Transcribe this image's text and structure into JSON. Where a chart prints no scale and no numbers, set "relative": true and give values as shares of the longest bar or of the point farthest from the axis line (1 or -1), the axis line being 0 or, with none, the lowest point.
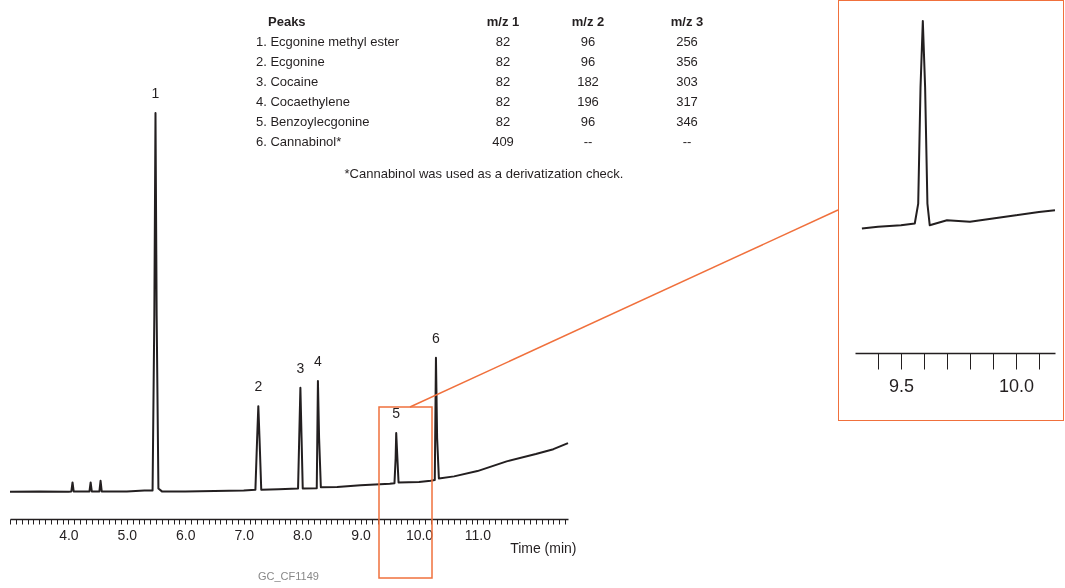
{
  "chart_data": [
    {
      "type": "line",
      "relative": true,
      "xlabel": "Time (min)",
      "color": "#231f20",
      "x": [
        3.0,
        3.5,
        4.0,
        4.05,
        4.07,
        4.09,
        4.36,
        4.38,
        4.4,
        4.53,
        4.55,
        4.57,
        5.0,
        5.3,
        5.44,
        5.47,
        5.49,
        5.51,
        5.54,
        5.6,
        6.0,
        6.5,
        7.0,
        7.2,
        7.23,
        7.25,
        7.27,
        7.3,
        7.6,
        7.93,
        7.95,
        7.97,
        7.99,
        8.01,
        8.25,
        8.27,
        8.29,
        8.32,
        8.6,
        9.0,
        9.5,
        9.58,
        9.6,
        9.61,
        9.63,
        9.65,
        10.0,
        10.2,
        10.27,
        10.29,
        10.31,
        10.34,
        10.6,
        11.0,
        11.5,
        12.0,
        12.3,
        12.55
      ],
      "values": [
        0.067,
        0.068,
        0.067,
        0.068,
        0.09,
        0.068,
        0.068,
        0.09,
        0.068,
        0.068,
        0.094,
        0.068,
        0.068,
        0.07,
        0.07,
        0.5,
        1.0,
        0.5,
        0.075,
        0.068,
        0.068,
        0.069,
        0.07,
        0.072,
        0.2,
        0.278,
        0.2,
        0.072,
        0.073,
        0.075,
        0.2,
        0.323,
        0.2,
        0.075,
        0.076,
        0.34,
        0.2,
        0.078,
        0.079,
        0.083,
        0.087,
        0.088,
        0.15,
        0.212,
        0.15,
        0.09,
        0.091,
        0.094,
        0.096,
        0.397,
        0.2,
        0.1,
        0.105,
        0.118,
        0.142,
        0.16,
        0.172,
        0.187
      ],
      "xlim": [
        3.0,
        12.55
      ],
      "xticks": [
        {
          "value": 3.0,
          "label": null
        },
        {
          "value": 3.1,
          "label": null
        },
        {
          "value": 3.2,
          "label": null
        },
        {
          "value": 3.3,
          "label": null
        },
        {
          "value": 3.4,
          "label": null
        },
        {
          "value": 3.5,
          "label": null
        },
        {
          "value": 3.6,
          "label": null
        },
        {
          "value": 3.7,
          "label": null
        },
        {
          "value": 3.8,
          "label": null
        },
        {
          "value": 3.9,
          "label": null
        },
        {
          "value": 4,
          "label": "4.0"
        },
        {
          "value": 4.1,
          "label": null
        },
        {
          "value": 4.2,
          "label": null
        },
        {
          "value": 4.3,
          "label": null
        },
        {
          "value": 4.4,
          "label": null
        },
        {
          "value": 4.5,
          "label": null
        },
        {
          "value": 4.6,
          "label": null
        },
        {
          "value": 4.7,
          "label": null
        },
        {
          "value": 4.8,
          "label": null
        },
        {
          "value": 4.9,
          "label": null
        },
        {
          "value": 5,
          "label": "5.0"
        },
        {
          "value": 5.1,
          "label": null
        },
        {
          "value": 5.2,
          "label": null
        },
        {
          "value": 5.3,
          "label": null
        },
        {
          "value": 5.4,
          "label": null
        },
        {
          "value": 5.5,
          "label": null
        },
        {
          "value": 5.6,
          "label": null
        },
        {
          "value": 5.7,
          "label": null
        },
        {
          "value": 5.8,
          "label": null
        },
        {
          "value": 5.9,
          "label": null
        },
        {
          "value": 6,
          "label": "6.0"
        },
        {
          "value": 6.1,
          "label": null
        },
        {
          "value": 6.2,
          "label": null
        },
        {
          "value": 6.3,
          "label": null
        },
        {
          "value": 6.4,
          "label": null
        },
        {
          "value": 6.5,
          "label": null
        },
        {
          "value": 6.6,
          "label": null
        },
        {
          "value": 6.7,
          "label": null
        },
        {
          "value": 6.8,
          "label": null
        },
        {
          "value": 6.9,
          "label": null
        },
        {
          "value": 7,
          "label": "7.0"
        },
        {
          "value": 7.1,
          "label": null
        },
        {
          "value": 7.2,
          "label": null
        },
        {
          "value": 7.3,
          "label": null
        },
        {
          "value": 7.4,
          "label": null
        },
        {
          "value": 7.5,
          "label": null
        },
        {
          "value": 7.6,
          "label": null
        },
        {
          "value": 7.7,
          "label": null
        },
        {
          "value": 7.8,
          "label": null
        },
        {
          "value": 7.9,
          "label": null
        },
        {
          "value": 8,
          "label": "8.0"
        },
        {
          "value": 8.1,
          "label": null
        },
        {
          "value": 8.2,
          "label": null
        },
        {
          "value": 8.3,
          "label": null
        },
        {
          "value": 8.4,
          "label": null
        },
        {
          "value": 8.5,
          "label": null
        },
        {
          "value": 8.6,
          "label": null
        },
        {
          "value": 8.7,
          "label": null
        },
        {
          "value": 8.8,
          "label": null
        },
        {
          "value": 8.9,
          "label": null
        },
        {
          "value": 9,
          "label": "9.0"
        },
        {
          "value": 9.1,
          "label": null
        },
        {
          "value": 9.2,
          "label": null
        },
        {
          "value": 9.3,
          "label": null
        },
        {
          "value": 9.4,
          "label": null
        },
        {
          "value": 9.5,
          "label": null
        },
        {
          "value": 9.6,
          "label": null
        },
        {
          "value": 9.7,
          "label": null
        },
        {
          "value": 9.8,
          "label": null
        },
        {
          "value": 9.9,
          "label": null
        },
        {
          "value": 10,
          "label": "10.0"
        },
        {
          "value": 10.1,
          "label": null
        },
        {
          "value": 10.2,
          "label": null
        },
        {
          "value": 10.3,
          "label": null
        },
        {
          "value": 10.4,
          "label": null
        },
        {
          "value": 10.5,
          "label": null
        },
        {
          "value": 10.6,
          "label": null
        },
        {
          "value": 10.7,
          "label": null
        },
        {
          "value": 10.8,
          "label": null
        },
        {
          "value": 10.9,
          "label": null
        },
        {
          "value": 11,
          "label": "11.0"
        },
        {
          "value": 11.1,
          "label": null
        },
        {
          "value": 11.2,
          "label": null
        },
        {
          "value": 11.3,
          "label": null
        },
        {
          "value": 11.4,
          "label": null
        },
        {
          "value": 11.5,
          "label": null
        },
        {
          "value": 11.6,
          "label": null
        },
        {
          "value": 11.7,
          "label": null
        },
        {
          "value": 11.8,
          "label": null
        },
        {
          "value": 11.9,
          "label": null
        },
        {
          "value": 12,
          "label": null
        },
        {
          "value": 12.1,
          "label": null
        },
        {
          "value": 12.2,
          "label": null
        },
        {
          "value": 12.3,
          "label": null
        },
        {
          "value": 12.4,
          "label": null
        },
        {
          "value": 12.5,
          "label": null
        }
      ],
      "annotations": [
        {
          "text": "1",
          "x": 5.49,
          "y": 1.0
        },
        {
          "text": "2",
          "x": 7.25,
          "y": 0.278
        },
        {
          "text": "3",
          "x": 7.97,
          "y": 0.323
        },
        {
          "text": "4",
          "x": 8.27,
          "y": 0.34
        },
        {
          "text": "5",
          "x": 9.61,
          "y": 0.212
        },
        {
          "text": "6",
          "x": 10.29,
          "y": 0.397
        },
        "Peaks",
        "m/z 1",
        "m/z 2",
        "m/z 3",
        "1. Ecgonine methyl ester",
        "82",
        "96",
        "256",
        "2. Ecgonine",
        "82",
        "96",
        "356",
        "3. Cocaine",
        "82",
        "182",
        "303",
        "4. Cocaethylene",
        "82",
        "196",
        "317",
        "5. Benzoylecgonine",
        "82",
        "96",
        "346",
        "6. Cannabinol*",
        "409",
        "--",
        "--",
        "*Cannabinol was used as a derivatization check.",
        "GC_CF1149"
      ]
    },
    {
      "type": "line",
      "relative": true,
      "color": "#231f20",
      "x": [
        9.33,
        9.4,
        9.5,
        9.56,
        9.575,
        9.585,
        9.595,
        9.605,
        9.615,
        9.625,
        9.7,
        9.8,
        9.9,
        10.0,
        10.1,
        10.17
      ],
      "values": [
        0.375,
        0.38,
        0.385,
        0.39,
        0.45,
        0.8,
        1.0,
        0.8,
        0.45,
        0.385,
        0.4,
        0.395,
        0.405,
        0.415,
        0.425,
        0.43
      ],
      "xlim": [
        9.3,
        10.17
      ],
      "xticks": [
        {
          "value": 9.4,
          "label": null
        },
        {
          "value": 9.5,
          "label": "9.5"
        },
        {
          "value": 9.6,
          "label": null
        },
        {
          "value": 9.7,
          "label": null
        },
        {
          "value": 9.8,
          "label": null
        },
        {
          "value": 9.9,
          "label": null
        },
        {
          "value": 10,
          "label": "10.0"
        },
        {
          "value": 10.1,
          "label": null
        }
      ]
    }
  ]
}
